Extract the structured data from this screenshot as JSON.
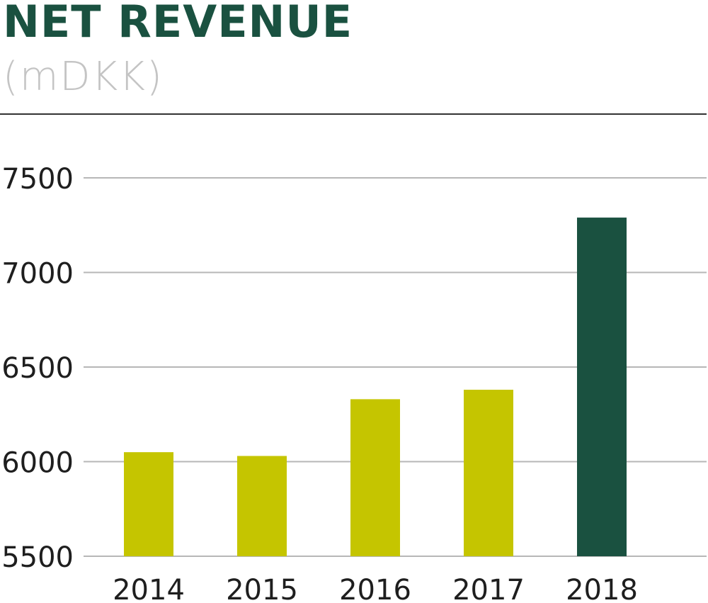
{
  "header": {
    "title": "NET REVENUE",
    "subtitle": "(mDKK)"
  },
  "colors": {
    "title": "#1a5140",
    "subtitle": "#c4c4c4",
    "bar_default": "#c5c500",
    "bar_highlight": "#1a5140",
    "grid": "#b7b7b7"
  },
  "chart_data": {
    "type": "bar",
    "title": "NET REVENUE",
    "subtitle": "(mDKK)",
    "xlabel": "",
    "ylabel": "",
    "categories": [
      "2014",
      "2015",
      "2016",
      "2017",
      "2018"
    ],
    "values": [
      6050,
      6030,
      6330,
      6380,
      7290
    ],
    "highlight_index": 4,
    "ylim": [
      5500,
      7500
    ],
    "yticks": [
      5500,
      6000,
      6500,
      7000,
      7500
    ],
    "ytick_labels": [
      "5500",
      "6000",
      "6500",
      "7000",
      "7500"
    ],
    "grid": true,
    "legend": "none"
  }
}
